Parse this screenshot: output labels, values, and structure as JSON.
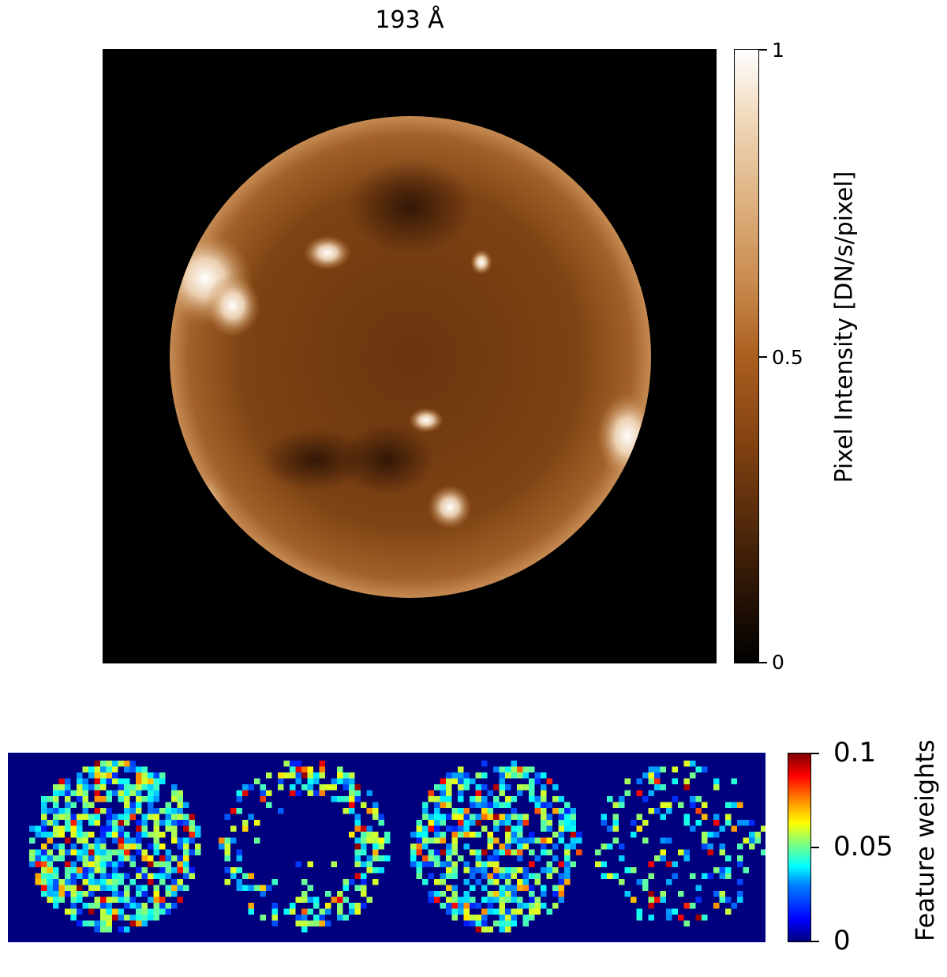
{
  "chart_data": [
    {
      "type": "heatmap",
      "title": "193 Å",
      "colorbar": {
        "label": "Pixel Intensity [DN/s/pixel]",
        "ticks": [
          "0",
          "0.5",
          "1"
        ],
        "range": [
          0,
          1
        ],
        "colormap": "sdoaia193"
      }
    },
    {
      "type": "heatmap",
      "panels": 4,
      "colorbar": {
        "label": "Feature weights",
        "ticks": [
          "0",
          "0.05",
          "0.1"
        ],
        "range": [
          0,
          0.1
        ],
        "colormap": "jet"
      }
    }
  ]
}
